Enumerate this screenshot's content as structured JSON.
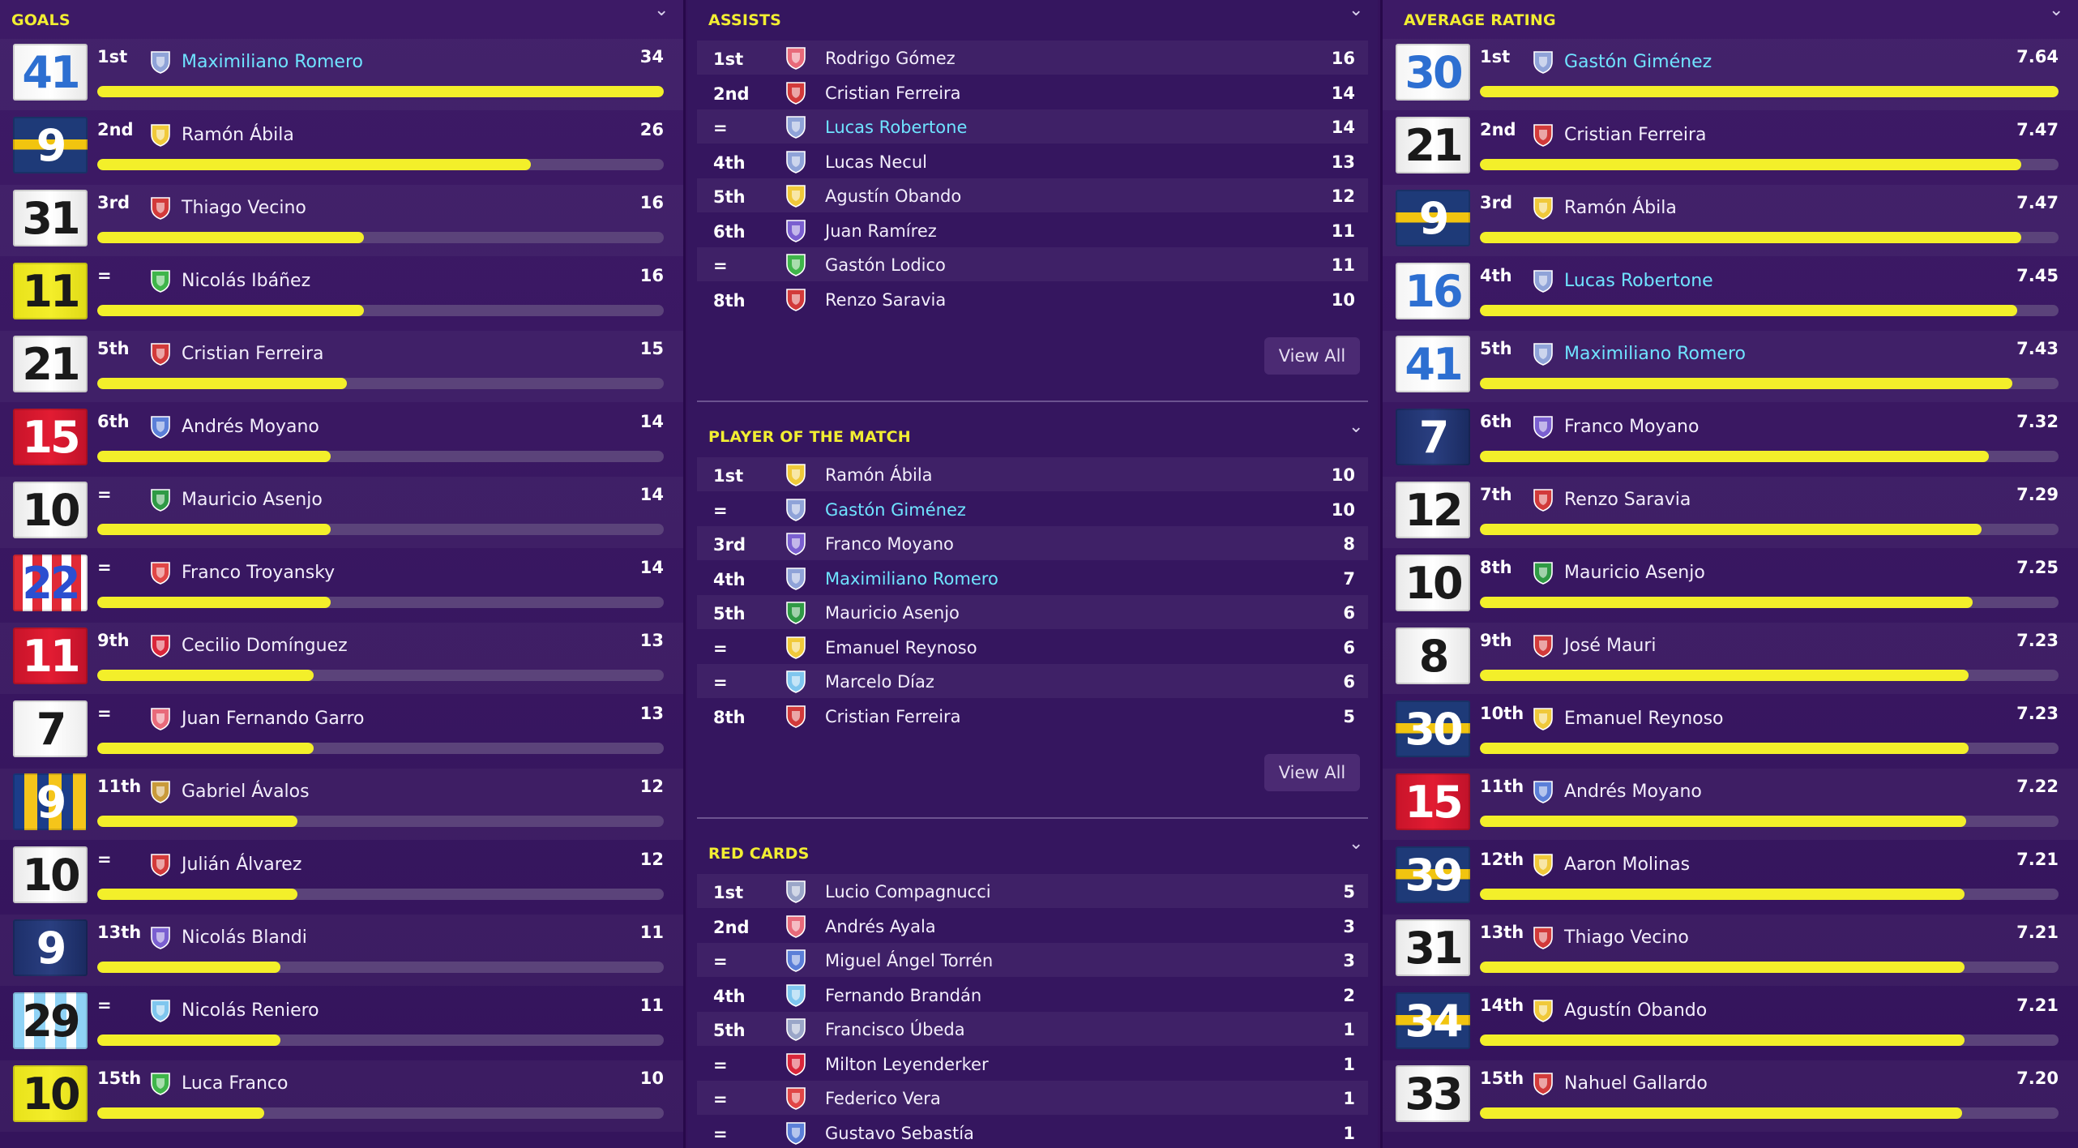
{
  "goals": {
    "title": "GOALS",
    "max": 34,
    "rows": [
      {
        "num": "41",
        "rank": "1st",
        "name": "Maximiliano Romero",
        "value": "34",
        "v": 34,
        "hl": true,
        "shirt": "white-blue",
        "badge": "#8fa3d8"
      },
      {
        "num": "9",
        "rank": "2nd",
        "name": "Ramón Ábila",
        "value": "26",
        "v": 26,
        "hl": false,
        "shirt": "navy-yellow",
        "badge": "#f0c93a"
      },
      {
        "num": "31",
        "rank": "3rd",
        "name": "Thiago Vecino",
        "value": "16",
        "v": 16,
        "hl": false,
        "shirt": "white-black",
        "badge": "#d23a3a"
      },
      {
        "num": "11",
        "rank": "=",
        "name": "Nicolás Ibáñez",
        "value": "16",
        "v": 16,
        "hl": false,
        "shirt": "yellow-black",
        "badge": "#3fb54a"
      },
      {
        "num": "21",
        "rank": "5th",
        "name": "Cristian Ferreira",
        "value": "15",
        "v": 15,
        "hl": false,
        "shirt": "white-black",
        "badge": "#d23a3a"
      },
      {
        "num": "15",
        "rank": "6th",
        "name": "Andrés Moyano",
        "value": "14",
        "v": 14,
        "hl": false,
        "shirt": "red-white",
        "badge": "#5b7fd8"
      },
      {
        "num": "10",
        "rank": "=",
        "name": "Mauricio Asenjo",
        "value": "14",
        "v": 14,
        "hl": false,
        "shirt": "white-black",
        "badge": "#2f9a45"
      },
      {
        "num": "22",
        "rank": "=",
        "name": "Franco Troyansky",
        "value": "14",
        "v": 14,
        "hl": false,
        "shirt": "stripes-red",
        "badge": "#e04646"
      },
      {
        "num": "11",
        "rank": "9th",
        "name": "Cecilio Domínguez",
        "value": "13",
        "v": 13,
        "hl": false,
        "shirt": "red-white",
        "badge": "#d9263a"
      },
      {
        "num": "7",
        "rank": "=",
        "name": "Juan Fernando Garro",
        "value": "13",
        "v": 13,
        "hl": false,
        "shirt": "white-red",
        "badge": "#e86a7a"
      },
      {
        "num": "9",
        "rank": "11th",
        "name": "Gabriel Ávalos",
        "value": "12",
        "v": 12,
        "hl": false,
        "shirt": "stripes-yellow",
        "badge": "#c99a3a"
      },
      {
        "num": "10",
        "rank": "=",
        "name": "Julián Álvarez",
        "value": "12",
        "v": 12,
        "hl": false,
        "shirt": "white-black",
        "badge": "#d23a3a"
      },
      {
        "num": "9",
        "rank": "13th",
        "name": "Nicolás Blandi",
        "value": "11",
        "v": 11,
        "hl": false,
        "shirt": "navy-white",
        "badge": "#7a5fd0"
      },
      {
        "num": "29",
        "rank": "=",
        "name": "Nicolás Reniero",
        "value": "11",
        "v": 11,
        "hl": false,
        "shirt": "lightblue",
        "badge": "#7fc6ee"
      },
      {
        "num": "10",
        "rank": "15th",
        "name": "Luca Franco",
        "value": "10",
        "v": 10,
        "hl": false,
        "shirt": "yellow-black",
        "badge": "#3fb54a"
      }
    ]
  },
  "assists": {
    "title": "ASSISTS",
    "view_all": "View All",
    "rows": [
      {
        "rank": "1st",
        "name": "Rodrigo Gómez",
        "value": "16",
        "hl": false,
        "badge": "#e86a7a"
      },
      {
        "rank": "2nd",
        "name": "Cristian Ferreira",
        "value": "14",
        "hl": false,
        "badge": "#d23a3a"
      },
      {
        "rank": "=",
        "name": "Lucas Robertone",
        "value": "14",
        "hl": true,
        "badge": "#8fa3d8"
      },
      {
        "rank": "4th",
        "name": "Lucas Necul",
        "value": "13",
        "hl": false,
        "badge": "#8fa3d8"
      },
      {
        "rank": "5th",
        "name": "Agustín Obando",
        "value": "12",
        "hl": false,
        "badge": "#f0c93a"
      },
      {
        "rank": "6th",
        "name": "Juan Ramírez",
        "value": "11",
        "hl": false,
        "badge": "#7a5fd0"
      },
      {
        "rank": "=",
        "name": "Gastón Lodico",
        "value": "11",
        "hl": false,
        "badge": "#3fb54a"
      },
      {
        "rank": "8th",
        "name": "Renzo Saravia",
        "value": "10",
        "hl": false,
        "badge": "#d23a3a"
      }
    ]
  },
  "potm": {
    "title": "PLAYER OF THE MATCH",
    "view_all": "View All",
    "rows": [
      {
        "rank": "1st",
        "name": "Ramón Ábila",
        "value": "10",
        "hl": false,
        "badge": "#f0c93a"
      },
      {
        "rank": "=",
        "name": "Gastón Giménez",
        "value": "10",
        "hl": true,
        "badge": "#8fa3d8"
      },
      {
        "rank": "3rd",
        "name": "Franco Moyano",
        "value": "8",
        "hl": false,
        "badge": "#7a5fd0"
      },
      {
        "rank": "4th",
        "name": "Maximiliano Romero",
        "value": "7",
        "hl": true,
        "badge": "#8fa3d8"
      },
      {
        "rank": "5th",
        "name": "Mauricio Asenjo",
        "value": "6",
        "hl": false,
        "badge": "#2f9a45"
      },
      {
        "rank": "=",
        "name": "Emanuel Reynoso",
        "value": "6",
        "hl": false,
        "badge": "#f0c93a"
      },
      {
        "rank": "=",
        "name": "Marcelo Díaz",
        "value": "6",
        "hl": false,
        "badge": "#7fc6ee"
      },
      {
        "rank": "8th",
        "name": "Cristian Ferreira",
        "value": "5",
        "hl": false,
        "badge": "#d23a3a"
      }
    ]
  },
  "red_cards": {
    "title": "RED CARDS",
    "rows": [
      {
        "rank": "1st",
        "name": "Lucio Compagnucci",
        "value": "5",
        "hl": false,
        "badge": "#9aa6c8"
      },
      {
        "rank": "2nd",
        "name": "Andrés Ayala",
        "value": "3",
        "hl": false,
        "badge": "#e86a7a"
      },
      {
        "rank": "=",
        "name": "Miguel Ángel Torrén",
        "value": "3",
        "hl": false,
        "badge": "#5b7fd8"
      },
      {
        "rank": "4th",
        "name": "Fernando Brandán",
        "value": "2",
        "hl": false,
        "badge": "#7fc6ee"
      },
      {
        "rank": "5th",
        "name": "Francisco Úbeda",
        "value": "1",
        "hl": false,
        "badge": "#9aa6c8"
      },
      {
        "rank": "=",
        "name": "Milton Leyenderker",
        "value": "1",
        "hl": false,
        "badge": "#d9263a"
      },
      {
        "rank": "=",
        "name": "Federico Vera",
        "value": "1",
        "hl": false,
        "badge": "#e04646"
      },
      {
        "rank": "=",
        "name": "Gustavo Sebastía",
        "value": "1",
        "hl": false,
        "badge": "#5b7fd8"
      }
    ]
  },
  "avg_rating": {
    "title": "AVERAGE RATING",
    "rows": [
      {
        "num": "30",
        "rank": "1st",
        "name": "Gastón Giménez",
        "value": "7.64",
        "v": 7.64,
        "hl": true,
        "shirt": "white-blue",
        "badge": "#8fa3d8"
      },
      {
        "num": "21",
        "rank": "2nd",
        "name": "Cristian Ferreira",
        "value": "7.47",
        "v": 7.47,
        "hl": false,
        "shirt": "white-black",
        "badge": "#d23a3a"
      },
      {
        "num": "9",
        "rank": "3rd",
        "name": "Ramón Ábila",
        "value": "7.47",
        "v": 7.47,
        "hl": false,
        "shirt": "navy-yellow",
        "badge": "#f0c93a"
      },
      {
        "num": "16",
        "rank": "4th",
        "name": "Lucas Robertone",
        "value": "7.45",
        "v": 7.45,
        "hl": true,
        "shirt": "white-blue",
        "badge": "#8fa3d8"
      },
      {
        "num": "41",
        "rank": "5th",
        "name": "Maximiliano Romero",
        "value": "7.43",
        "v": 7.43,
        "hl": true,
        "shirt": "white-blue",
        "badge": "#8fa3d8"
      },
      {
        "num": "7",
        "rank": "6th",
        "name": "Franco Moyano",
        "value": "7.32",
        "v": 7.32,
        "hl": false,
        "shirt": "navy-white",
        "badge": "#7a5fd0"
      },
      {
        "num": "12",
        "rank": "7th",
        "name": "Renzo Saravia",
        "value": "7.29",
        "v": 7.29,
        "hl": false,
        "shirt": "white-black",
        "badge": "#d23a3a"
      },
      {
        "num": "10",
        "rank": "8th",
        "name": "Mauricio Asenjo",
        "value": "7.25",
        "v": 7.25,
        "hl": false,
        "shirt": "white-black",
        "badge": "#2f9a45"
      },
      {
        "num": "8",
        "rank": "9th",
        "name": "José Mauri",
        "value": "7.23",
        "v": 7.23,
        "hl": false,
        "shirt": "white-black",
        "badge": "#d23a3a"
      },
      {
        "num": "30",
        "rank": "10th",
        "name": "Emanuel Reynoso",
        "value": "7.23",
        "v": 7.23,
        "hl": false,
        "shirt": "navy-yellow",
        "badge": "#f0c93a"
      },
      {
        "num": "15",
        "rank": "11th",
        "name": "Andrés Moyano",
        "value": "7.22",
        "v": 7.22,
        "hl": false,
        "shirt": "red-white",
        "badge": "#5b7fd8"
      },
      {
        "num": "39",
        "rank": "12th",
        "name": "Aaron Molinas",
        "value": "7.21",
        "v": 7.21,
        "hl": false,
        "shirt": "navy-yellow",
        "badge": "#f0c93a"
      },
      {
        "num": "31",
        "rank": "13th",
        "name": "Thiago Vecino",
        "value": "7.21",
        "v": 7.21,
        "hl": false,
        "shirt": "white-black",
        "badge": "#d23a3a"
      },
      {
        "num": "34",
        "rank": "14th",
        "name": "Agustín Obando",
        "value": "7.21",
        "v": 7.21,
        "hl": false,
        "shirt": "navy-yellow",
        "badge": "#f0c93a"
      },
      {
        "num": "33",
        "rank": "15th",
        "name": "Nahuel Gallardo",
        "value": "7.20",
        "v": 7.2,
        "hl": false,
        "shirt": "white-black",
        "badge": "#d23a3a"
      }
    ]
  }
}
